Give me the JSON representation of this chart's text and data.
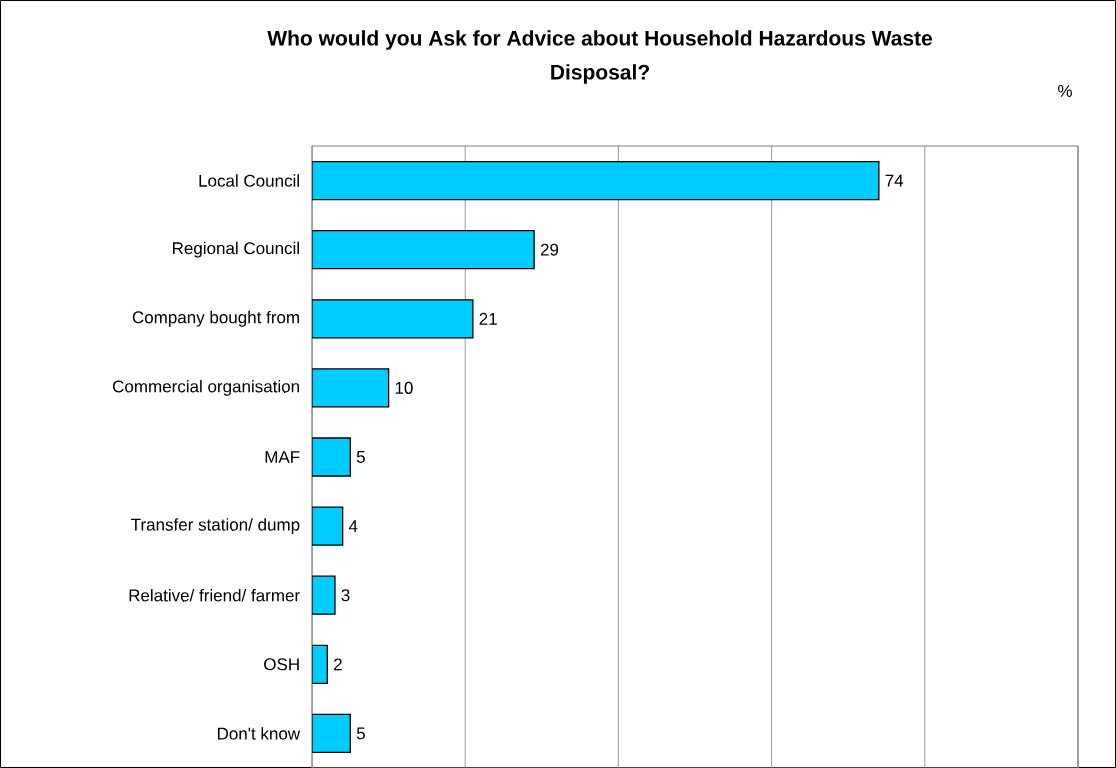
{
  "chart_data": {
    "type": "bar",
    "orientation": "horizontal",
    "title": "Who would you Ask for Advice about Household Hazardous Waste Disposal?",
    "categories": [
      "Local Council",
      "Regional Council",
      "Company bought from",
      "Commercial organisation",
      "MAF",
      "Transfer station/ dump",
      "Relative/ friend/ farmer",
      "OSH",
      "Don't know"
    ],
    "values": [
      74,
      29,
      21,
      10,
      5,
      4,
      3,
      2,
      5
    ],
    "color": "#00ccff",
    "xlim": [
      0,
      100
    ],
    "xticks": [
      {
        "value": 0,
        "label": null
      },
      {
        "value": 20,
        "label": null
      },
      {
        "value": 40,
        "label": null
      },
      {
        "value": 60,
        "label": null
      },
      {
        "value": 80,
        "label": null
      },
      {
        "value": 100,
        "label": null
      }
    ],
    "tick_labels": "y",
    "grid": "x",
    "data_labels": true,
    "annotations": [
      "%"
    ]
  }
}
